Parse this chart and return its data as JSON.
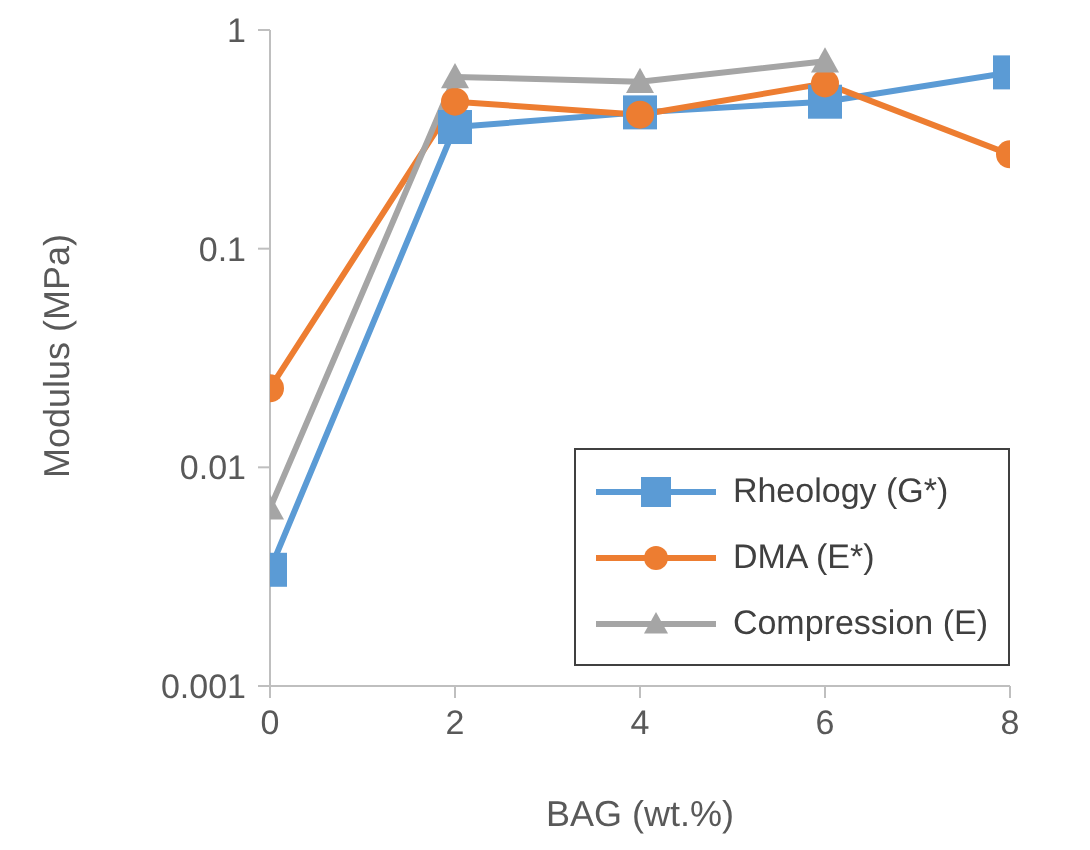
{
  "chart_data": {
    "type": "line",
    "xlabel": "BAG (wt.%)",
    "ylabel": "Modulus (MPa)",
    "x": [
      0,
      2,
      4,
      6,
      8
    ],
    "log": "y",
    "xlim": [
      0,
      8
    ],
    "xticks": [
      0,
      2,
      4,
      6,
      8
    ],
    "ylim": [
      0.001,
      1
    ],
    "yticks": [
      0.001,
      0.01,
      0.1,
      1
    ],
    "grid": false,
    "legend": "bottom right",
    "series": [
      {
        "name": "Rheology (G*)",
        "color": "#5b9bd5",
        "marker": "square",
        "values": [
          0.0034,
          0.36,
          0.42,
          0.47,
          0.64
        ]
      },
      {
        "name": "DMA (E*)",
        "color": "#ed7d31",
        "marker": "circle",
        "values": [
          0.023,
          0.47,
          0.41,
          0.57,
          0.27
        ]
      },
      {
        "name": "Compression (E)",
        "color": "#a5a5a5",
        "marker": "triangle",
        "values": [
          0.0065,
          0.61,
          0.58,
          0.72,
          null
        ]
      }
    ]
  }
}
